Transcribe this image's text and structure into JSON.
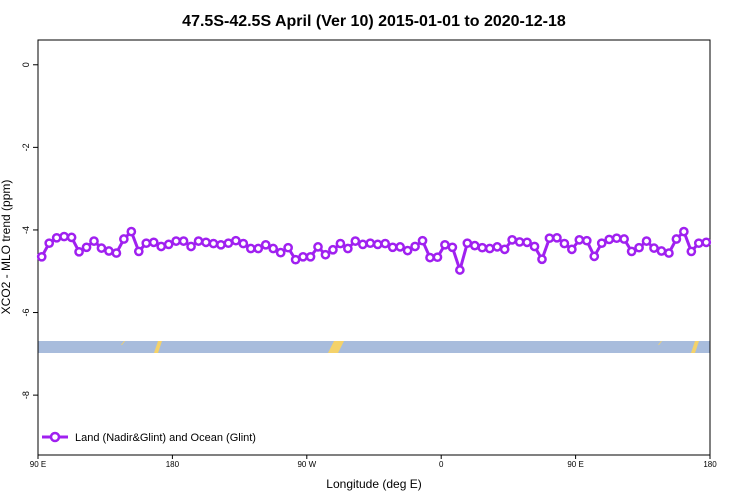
{
  "chart_data": {
    "type": "line",
    "title": "47.5S-42.5S April (Ver 10)   2015-01-01 to 2020-12-18",
    "x_label": "Longitude (deg E)",
    "y_label": "XCO2 - MLO trend (ppm)",
    "xlim": [
      90,
      540
    ],
    "ylim": [
      -9.45,
      0.6
    ],
    "xticks": [
      {
        "value": 90,
        "label": "90 E"
      },
      180,
      {
        "value": 270,
        "label": "90 W"
      },
      {
        "value": 360,
        "label": "0"
      },
      {
        "value": 450,
        "label": "90 E"
      },
      {
        "value": 540,
        "label": "180"
      }
    ],
    "yticks": [
      0,
      -2,
      -4,
      -6,
      -8
    ],
    "x": [
      92.5,
      97.5,
      102.5,
      107.5,
      112.5,
      117.5,
      122.5,
      127.5,
      132.5,
      137.5,
      142.5,
      147.5,
      152.5,
      157.5,
      162.5,
      167.5,
      172.5,
      177.5,
      182.5,
      187.5,
      192.5,
      197.5,
      202.5,
      207.5,
      212.5,
      217.5,
      222.5,
      227.5,
      232.5,
      237.5,
      242.5,
      247.5,
      252.5,
      257.5,
      262.5,
      267.5,
      272.5,
      277.5,
      282.5,
      287.5,
      292.5,
      297.5,
      302.5,
      307.5,
      312.5,
      317.5,
      322.5,
      327.5,
      332.5,
      337.5,
      342.5,
      347.5,
      352.5,
      357.5,
      362.5,
      367.5,
      372.5,
      377.5,
      382.5,
      387.5,
      392.5,
      397.5,
      402.5,
      407.5,
      412.5,
      417.5,
      422.5,
      427.5,
      432.5,
      437.5,
      442.5,
      447.5,
      452.5,
      457.5,
      462.5,
      467.5,
      472.5,
      477.5,
      482.5,
      487.5,
      492.5,
      497.5,
      502.5,
      507.5,
      512.5,
      517.5,
      522.5,
      527.5,
      532.5,
      537.5
    ],
    "series": [
      {
        "name": "Land (Nadir&Glint) and Ocean (Glint)",
        "color": "#a020f0",
        "values": [
          -4.65,
          -4.32,
          -4.19,
          -4.16,
          -4.18,
          -4.53,
          -4.42,
          -4.27,
          -4.44,
          -4.51,
          -4.56,
          -4.22,
          -4.04,
          -4.52,
          -4.32,
          -4.3,
          -4.4,
          -4.35,
          -4.27,
          -4.27,
          -4.4,
          -4.27,
          -4.3,
          -4.33,
          -4.36,
          -4.32,
          -4.26,
          -4.33,
          -4.45,
          -4.45,
          -4.36,
          -4.45,
          -4.55,
          -4.43,
          -4.72,
          -4.65,
          -4.65,
          -4.41,
          -4.6,
          -4.48,
          -4.33,
          -4.45,
          -4.27,
          -4.35,
          -4.32,
          -4.35,
          -4.33,
          -4.42,
          -4.41,
          -4.5,
          -4.4,
          -4.26,
          -4.67,
          -4.66,
          -4.36,
          -4.42,
          -4.97,
          -4.32,
          -4.38,
          -4.43,
          -4.45,
          -4.41,
          -4.47,
          -4.24,
          -4.29,
          -4.3,
          -4.4,
          -4.71,
          -4.2,
          -4.19,
          -4.33,
          -4.47,
          -4.24,
          -4.26,
          -4.64,
          -4.32,
          -4.23,
          -4.2,
          -4.22,
          -4.52,
          -4.43,
          -4.27,
          -4.44,
          -4.51,
          -4.56,
          -4.22,
          -4.04,
          -4.52,
          -4.32,
          -4.3
        ]
      }
    ]
  }
}
